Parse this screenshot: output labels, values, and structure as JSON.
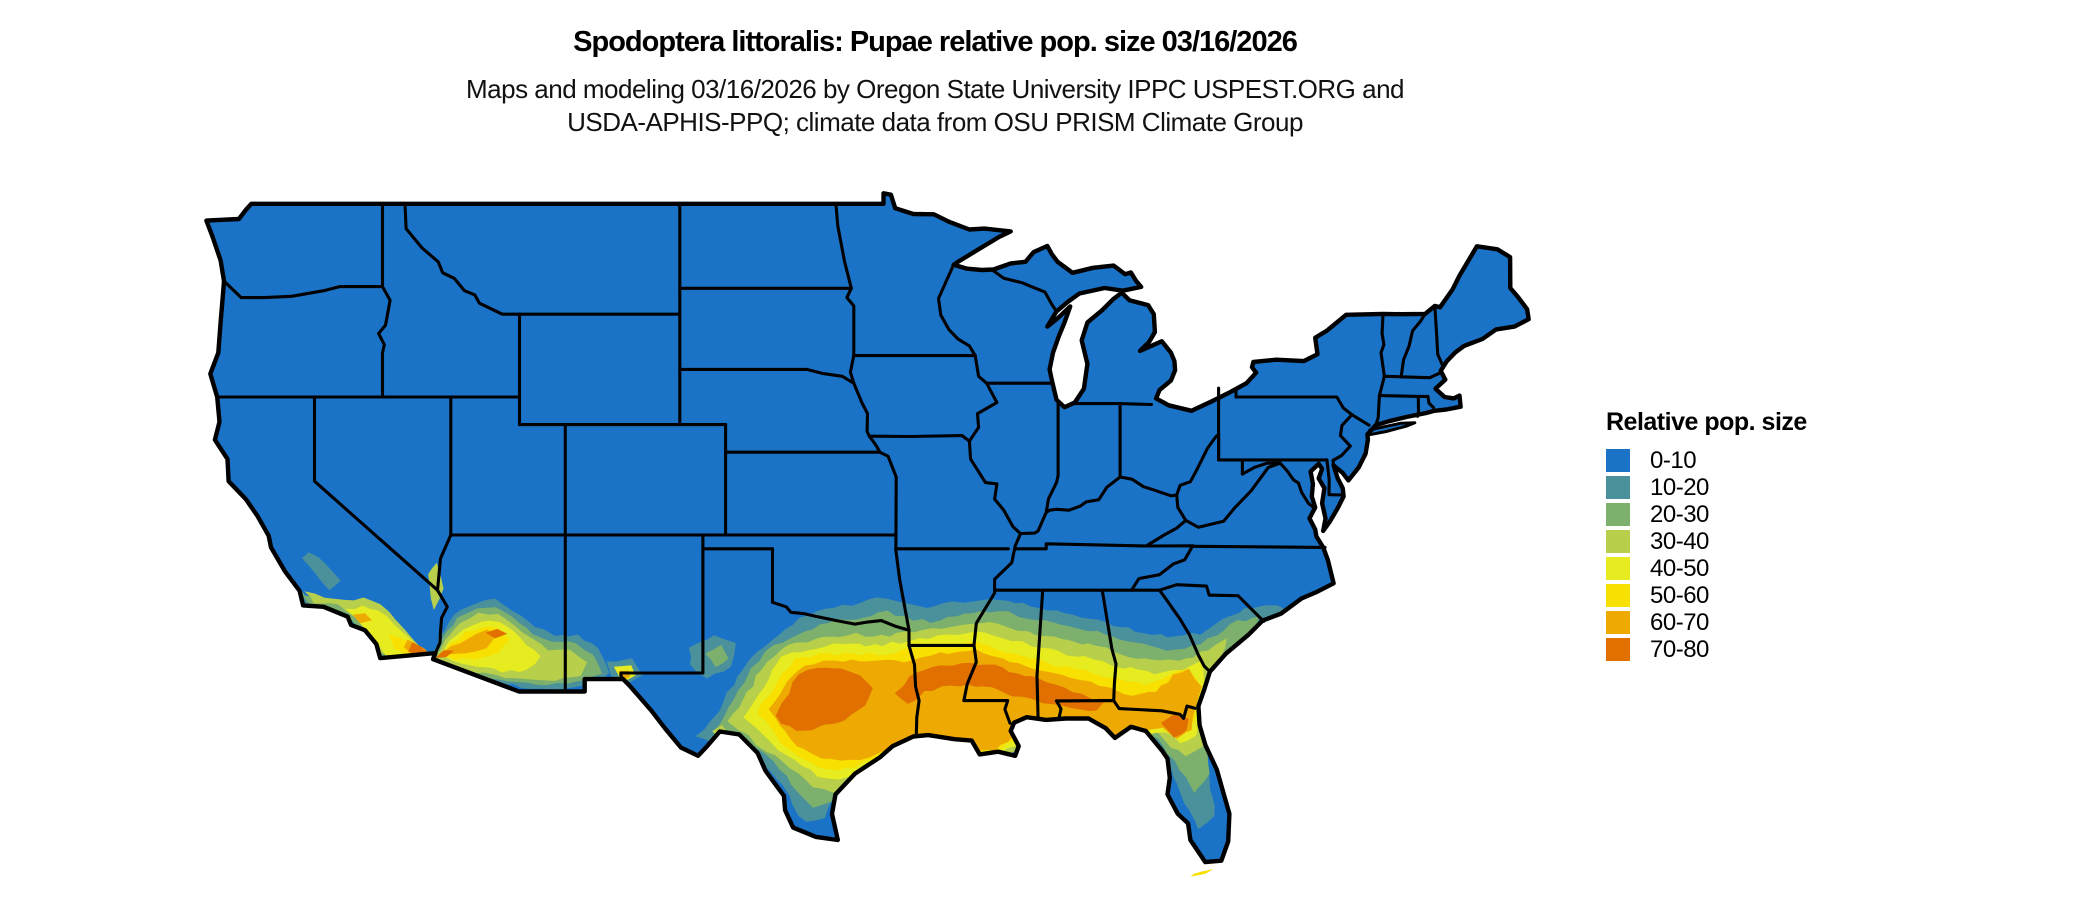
{
  "header": {
    "title": "Spodoptera littoralis: Pupae relative pop. size 03/16/2026",
    "subtitle_line1": "Maps and modeling 03/16/2026 by Oregon State University IPPC USPEST.ORG and",
    "subtitle_line2": "USDA-APHIS-PPQ; climate data from OSU PRISM Climate Group"
  },
  "legend": {
    "title": "Relative pop. size",
    "items": [
      {
        "label": "0-10",
        "color": "#1B73C8"
      },
      {
        "label": "10-20",
        "color": "#4A919B"
      },
      {
        "label": "20-30",
        "color": "#7CB06C"
      },
      {
        "label": "30-40",
        "color": "#B8CF4B"
      },
      {
        "label": "40-50",
        "color": "#E6EC20"
      },
      {
        "label": "50-60",
        "color": "#F8E000"
      },
      {
        "label": "60-70",
        "color": "#EEAA03"
      },
      {
        "label": "70-80",
        "color": "#E17000"
      }
    ]
  },
  "map": {
    "region": "Contiguous United States",
    "background_color": "#FFFFFF",
    "border_color": "#000000",
    "base_fill_bin": "0-10"
  }
}
